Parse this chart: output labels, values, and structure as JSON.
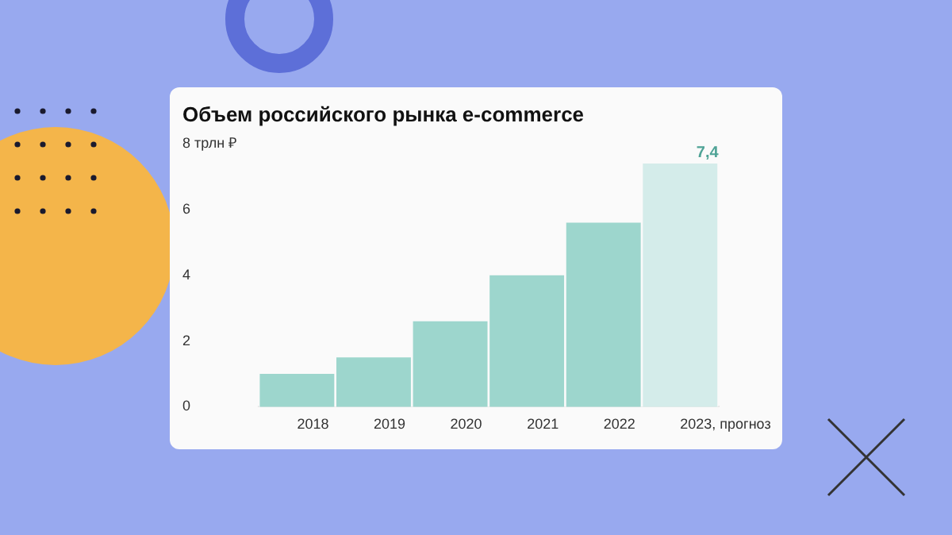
{
  "chart_data": {
    "type": "bar",
    "title": "Объем российского рынка e-commerce",
    "categories": [
      "2018",
      "2019",
      "2020",
      "2021",
      "2022",
      "2023, прогноз"
    ],
    "values": [
      1.0,
      1.5,
      2.6,
      4.0,
      5.6,
      7.4
    ],
    "colors": [
      "#9dd6cd",
      "#9dd6cd",
      "#9dd6cd",
      "#9dd6cd",
      "#9dd6cd",
      "#d4ecea"
    ],
    "value_labels": [
      null,
      null,
      null,
      null,
      null,
      "7,4"
    ],
    "ylim": [
      0,
      8
    ],
    "yticks": [
      0,
      2,
      4,
      6,
      {
        "value": 8,
        "label": "8 трлн ₽"
      }
    ],
    "grid": false,
    "legend": false
  }
}
